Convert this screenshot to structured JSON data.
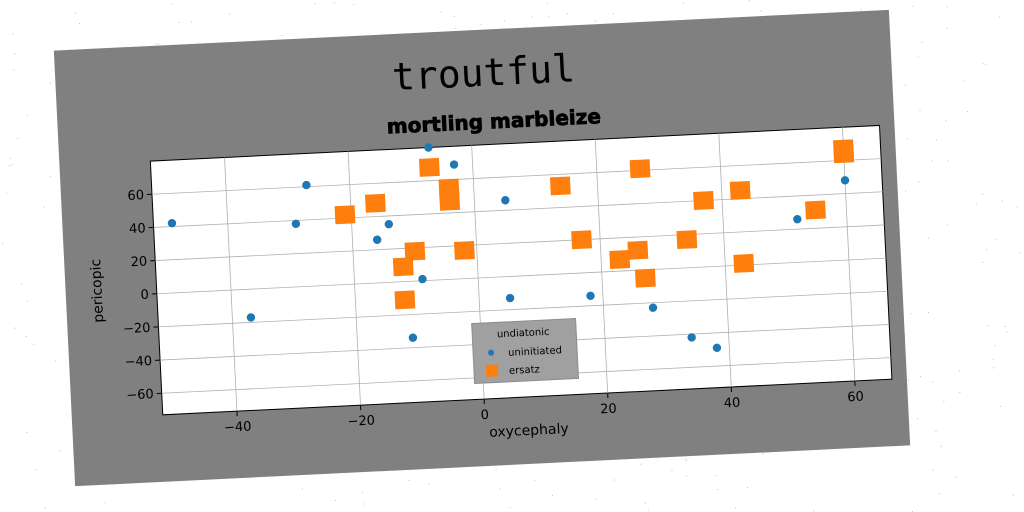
{
  "chart_data": {
    "type": "scatter",
    "suptitle": "troutful",
    "title": "mortling marbleize",
    "xlabel": "oxycephaly",
    "ylabel": "pericopic",
    "xlim": [
      -52,
      66
    ],
    "ylim": [
      -73,
      80
    ],
    "xticks": [
      -40,
      -20,
      0,
      20,
      40,
      60
    ],
    "yticks": [
      -60,
      -40,
      -20,
      0,
      20,
      40,
      60
    ],
    "grid": true,
    "legend": {
      "title": "undiatonic",
      "placement": "lower-center"
    },
    "series": [
      {
        "name": "uninitiated",
        "color": "#1f77b4",
        "marker": "circle",
        "points": [
          [
            -49,
            42
          ],
          [
            -37,
            -17
          ],
          [
            -29,
            38
          ],
          [
            -27,
            61
          ],
          [
            -16,
            26
          ],
          [
            -14,
            35
          ],
          [
            -11,
            -34
          ],
          [
            -9,
            1
          ],
          [
            -7,
            80
          ],
          [
            -3,
            69
          ],
          [
            5,
            46
          ],
          [
            5,
            -13
          ],
          [
            18,
            -14
          ],
          [
            28,
            -23
          ],
          [
            34,
            -42
          ],
          [
            38,
            -49
          ],
          [
            52,
            26
          ],
          [
            60,
            48
          ]
        ]
      },
      {
        "name": "ersatz",
        "color": "#ff7f0e",
        "marker": "square",
        "points": [
          [
            -21,
            42
          ],
          [
            -16,
            48
          ],
          [
            -12,
            9
          ],
          [
            -12,
            -11
          ],
          [
            -10,
            18
          ],
          [
            -7,
            68
          ],
          [
            -4,
            55
          ],
          [
            -4,
            47
          ],
          [
            -2,
            17
          ],
          [
            14,
            53
          ],
          [
            17,
            20
          ],
          [
            23,
            7
          ],
          [
            26,
            12
          ],
          [
            27,
            -5
          ],
          [
            27,
            61
          ],
          [
            34,
            17
          ],
          [
            37,
            40
          ],
          [
            43,
            1
          ],
          [
            43,
            45
          ],
          [
            55,
            31
          ],
          [
            60,
            64
          ],
          [
            60,
            67
          ]
        ]
      }
    ]
  }
}
